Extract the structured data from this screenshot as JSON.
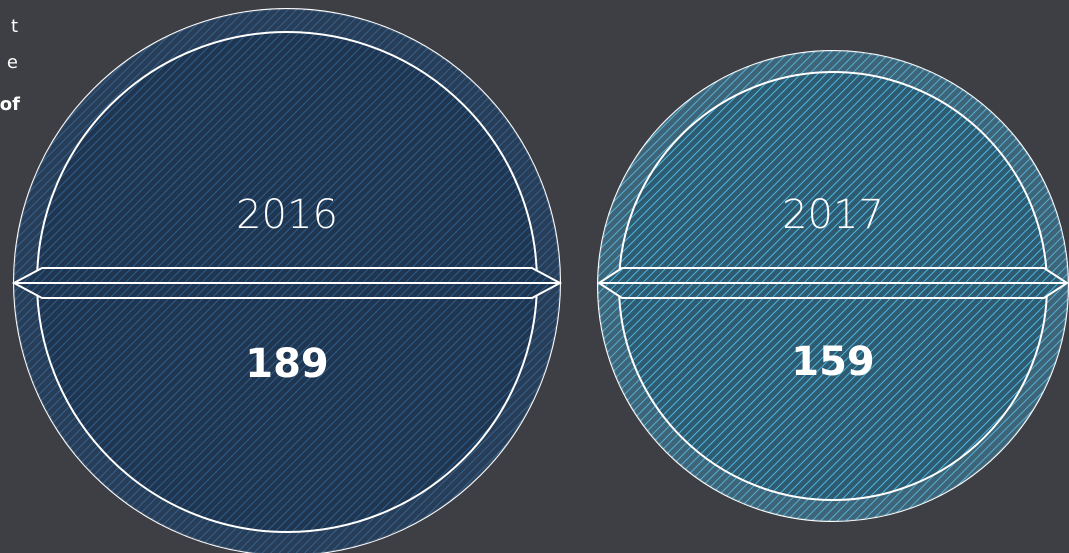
{
  "side_text": [
    "t",
    "e",
    "of"
  ],
  "items": [
    {
      "year": "2016",
      "value": 189
    },
    {
      "year": "2017",
      "value": 159
    }
  ]
}
